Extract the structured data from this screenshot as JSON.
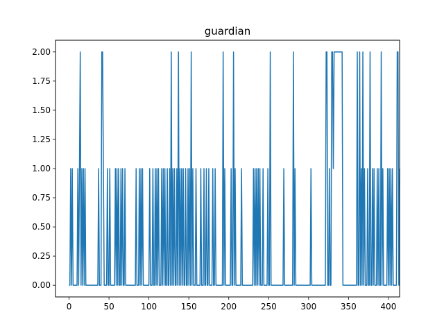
{
  "chart_data": {
    "type": "line",
    "title": "guardian",
    "xlabel": "",
    "ylabel": "",
    "xlim": [
      -17,
      414
    ],
    "ylim": [
      -0.1,
      2.1
    ],
    "xticks": [
      0,
      50,
      100,
      150,
      200,
      250,
      300,
      350,
      400
    ],
    "yticks": [
      0.0,
      0.25,
      0.5,
      0.75,
      1.0,
      1.25,
      1.5,
      1.75,
      2.0
    ],
    "xtick_labels": [
      "0",
      "50",
      "100",
      "150",
      "200",
      "250",
      "300",
      "350",
      "400"
    ],
    "ytick_labels": [
      "0.00",
      "0.25",
      "0.50",
      "0.75",
      "1.00",
      "1.25",
      "1.50",
      "1.75",
      "2.00"
    ],
    "grid": false,
    "line_color": "#1f77b4",
    "series": [
      {
        "name": "",
        "x_start": 0,
        "values": [
          0,
          0,
          1,
          0,
          1,
          0,
          0,
          0,
          0,
          0,
          0,
          1,
          0,
          1,
          2,
          0,
          1,
          0,
          1,
          0,
          1,
          0,
          0,
          0,
          0,
          0,
          0,
          0,
          0,
          0,
          0,
          0,
          0,
          0,
          0,
          0,
          0,
          1,
          0,
          0,
          0,
          2,
          2,
          1,
          0,
          0,
          0,
          0,
          1,
          0,
          0,
          1,
          0,
          0,
          0,
          0,
          0,
          0,
          1,
          0,
          1,
          0,
          1,
          0,
          0,
          1,
          0,
          1,
          0,
          0,
          1,
          0,
          0,
          0,
          0,
          0,
          0,
          0,
          0,
          0,
          0,
          0,
          0,
          0,
          1,
          0,
          0,
          0,
          1,
          0,
          1,
          0,
          1,
          0,
          0,
          0,
          0,
          0,
          0,
          0,
          0,
          1,
          0,
          0,
          0,
          1,
          0,
          0,
          1,
          0,
          1,
          0,
          1,
          0,
          0,
          0,
          1,
          0,
          1,
          0,
          1,
          0,
          0,
          1,
          0,
          0,
          1,
          0,
          2,
          0,
          1,
          0,
          1,
          0,
          0,
          1,
          0,
          2,
          0,
          1,
          0,
          1,
          0,
          1,
          0,
          0,
          1,
          0,
          0,
          1,
          0,
          1,
          0,
          2,
          0,
          1,
          0,
          0,
          0,
          1,
          0,
          0,
          0,
          0,
          0,
          1,
          0,
          0,
          0,
          1,
          0,
          0,
          1,
          0,
          0,
          1,
          0,
          0,
          0,
          0,
          1,
          0,
          0,
          1,
          0,
          0,
          0,
          0,
          0,
          0,
          0,
          0,
          0,
          2,
          0,
          1,
          0,
          0,
          0,
          0,
          0,
          0,
          0,
          1,
          0,
          0,
          2,
          0,
          1,
          0,
          0,
          0,
          0,
          0,
          0,
          0,
          1,
          0,
          0,
          0,
          0,
          0,
          0,
          0,
          0,
          0,
          0,
          0,
          0,
          0,
          0,
          1,
          0,
          1,
          0,
          1,
          0,
          1,
          0,
          1,
          0,
          0,
          0,
          1,
          0,
          0,
          0,
          0,
          0,
          1,
          0,
          0,
          2,
          0,
          0,
          0,
          0,
          0,
          0,
          0,
          0,
          0,
          0,
          0,
          0,
          0,
          0,
          0,
          0,
          1,
          0,
          0,
          0,
          0,
          0,
          0,
          0,
          0,
          0,
          0,
          0,
          2,
          0,
          1,
          0,
          0,
          0,
          0,
          0,
          0,
          0,
          0,
          0,
          0,
          0,
          0,
          0,
          0,
          0,
          0,
          0,
          0,
          0,
          1,
          0,
          0,
          0,
          0,
          0,
          0,
          0,
          0,
          0,
          0,
          0,
          0,
          0,
          0,
          0,
          0,
          0,
          0,
          2,
          2,
          0,
          0,
          1,
          0,
          0,
          2,
          2,
          1,
          2,
          2,
          2,
          2,
          2,
          2,
          2,
          2,
          2,
          2,
          2,
          0,
          0,
          0,
          0,
          0,
          0,
          0,
          0,
          0,
          0,
          0,
          0,
          0,
          0,
          0,
          0,
          0,
          0,
          2,
          0,
          0,
          2,
          0,
          1,
          0,
          2,
          0,
          1,
          0,
          0,
          0,
          1,
          0,
          0,
          2,
          0,
          0,
          1,
          0,
          1,
          0,
          0,
          0,
          1,
          0,
          1,
          0,
          0,
          2,
          0,
          1,
          0,
          0,
          0,
          0,
          0,
          1,
          0,
          1,
          0,
          1,
          0,
          1,
          0,
          0,
          0,
          0,
          0,
          2,
          2,
          0,
          1
        ]
      }
    ]
  }
}
